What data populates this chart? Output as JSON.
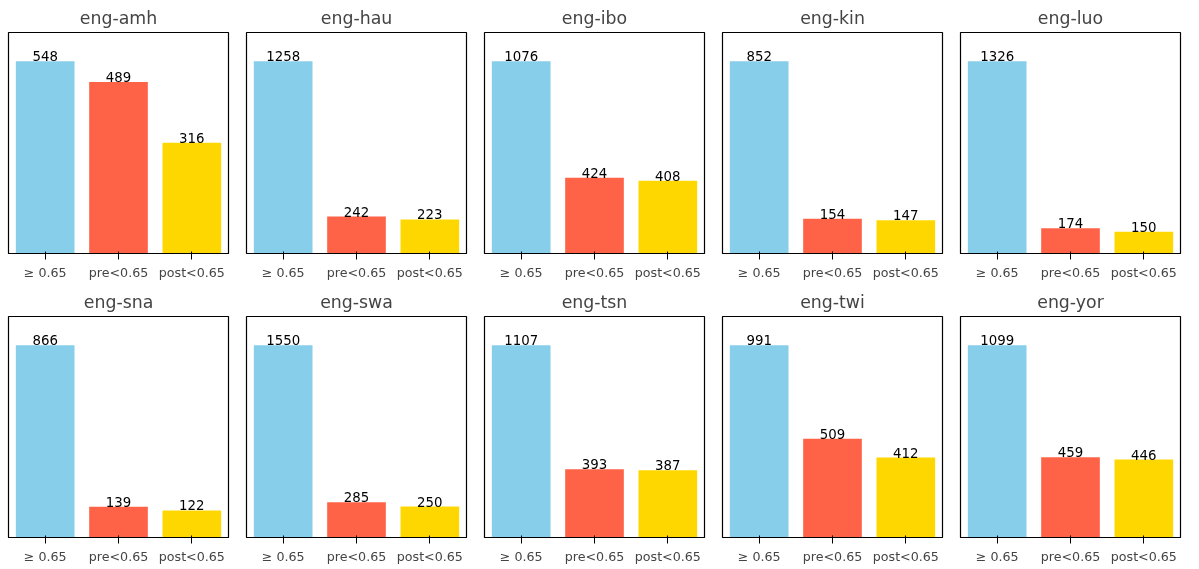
{
  "chart_data": [
    {
      "type": "bar",
      "title": "eng-amh",
      "categories": [
        "≥ 0.65",
        "pre<0.65",
        "post<0.65"
      ],
      "values": [
        548,
        489,
        316
      ],
      "colors": [
        "#87ceeb",
        "#ff6347",
        "#ffd700"
      ],
      "tick_labels": "x",
      "data_labels": true
    },
    {
      "type": "bar",
      "title": "eng-hau",
      "categories": [
        "≥ 0.65",
        "pre<0.65",
        "post<0.65"
      ],
      "values": [
        1258,
        242,
        223
      ],
      "colors": [
        "#87ceeb",
        "#ff6347",
        "#ffd700"
      ],
      "tick_labels": "x",
      "data_labels": true
    },
    {
      "type": "bar",
      "title": "eng-ibo",
      "categories": [
        "≥ 0.65",
        "pre<0.65",
        "post<0.65"
      ],
      "values": [
        1076,
        424,
        408
      ],
      "colors": [
        "#87ceeb",
        "#ff6347",
        "#ffd700"
      ],
      "tick_labels": "x",
      "data_labels": true
    },
    {
      "type": "bar",
      "title": "eng-kin",
      "categories": [
        "≥ 0.65",
        "pre<0.65",
        "post<0.65"
      ],
      "values": [
        852,
        154,
        147
      ],
      "colors": [
        "#87ceeb",
        "#ff6347",
        "#ffd700"
      ],
      "tick_labels": "x",
      "data_labels": true
    },
    {
      "type": "bar",
      "title": "eng-luo",
      "categories": [
        "≥ 0.65",
        "pre<0.65",
        "post<0.65"
      ],
      "values": [
        1326,
        174,
        150
      ],
      "colors": [
        "#87ceeb",
        "#ff6347",
        "#ffd700"
      ],
      "tick_labels": "x",
      "data_labels": true
    },
    {
      "type": "bar",
      "title": "eng-sna",
      "categories": [
        "≥ 0.65",
        "pre<0.65",
        "post<0.65"
      ],
      "values": [
        866,
        139,
        122
      ],
      "colors": [
        "#87ceeb",
        "#ff6347",
        "#ffd700"
      ],
      "tick_labels": "x",
      "data_labels": true
    },
    {
      "type": "bar",
      "title": "eng-swa",
      "categories": [
        "≥ 0.65",
        "pre<0.65",
        "post<0.65"
      ],
      "values": [
        1550,
        285,
        250
      ],
      "colors": [
        "#87ceeb",
        "#ff6347",
        "#ffd700"
      ],
      "tick_labels": "x",
      "data_labels": true
    },
    {
      "type": "bar",
      "title": "eng-tsn",
      "categories": [
        "≥ 0.65",
        "pre<0.65",
        "post<0.65"
      ],
      "values": [
        1107,
        393,
        387
      ],
      "colors": [
        "#87ceeb",
        "#ff6347",
        "#ffd700"
      ],
      "tick_labels": "x",
      "data_labels": true
    },
    {
      "type": "bar",
      "title": "eng-twi",
      "categories": [
        "≥ 0.65",
        "pre<0.65",
        "post<0.65"
      ],
      "values": [
        991,
        509,
        412
      ],
      "colors": [
        "#87ceeb",
        "#ff6347",
        "#ffd700"
      ],
      "tick_labels": "x",
      "data_labels": true
    },
    {
      "type": "bar",
      "title": "eng-yor",
      "categories": [
        "≥ 0.65",
        "pre<0.65",
        "post<0.65"
      ],
      "values": [
        1099,
        459,
        446
      ],
      "colors": [
        "#87ceeb",
        "#ff6347",
        "#ffd700"
      ],
      "tick_labels": "x",
      "data_labels": true
    }
  ]
}
